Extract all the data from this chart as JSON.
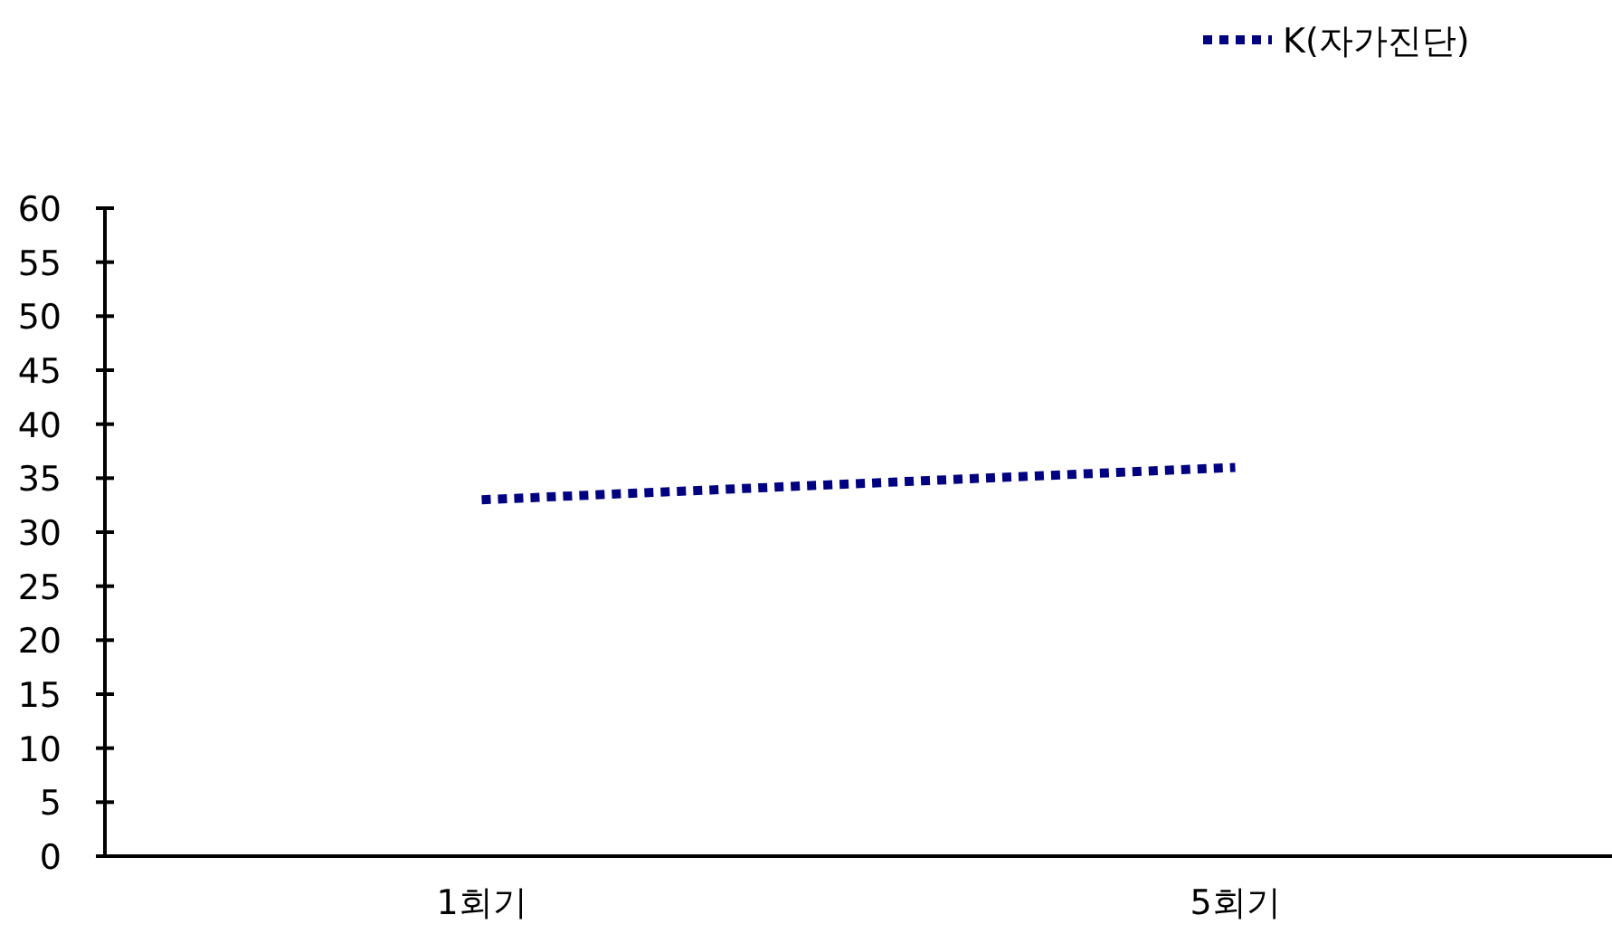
{
  "chart_data": {
    "type": "line",
    "categories": [
      "1회기",
      "5회기"
    ],
    "series": [
      {
        "name": "K(자가진단)",
        "color": "#000080",
        "values": [
          33,
          36
        ]
      }
    ],
    "ylim": [
      0,
      60
    ],
    "yticks": [
      0,
      5,
      10,
      15,
      20,
      25,
      30,
      35,
      40,
      45,
      50,
      55,
      60
    ],
    "legend": "top right",
    "line_style": "dotted",
    "marker": "none",
    "grid": false
  }
}
